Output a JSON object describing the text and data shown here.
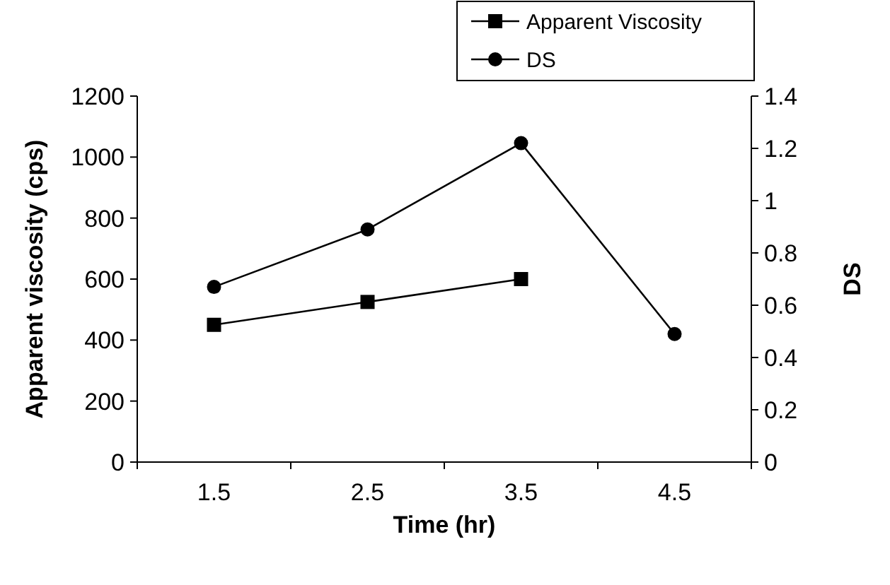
{
  "chart_data": {
    "type": "line",
    "xlabel": "Time (hr)",
    "ylabel": "Apparent viscosity (cps)",
    "y2label": "DS",
    "categories": [
      "1.5",
      "2.5",
      "3.5",
      "4.5"
    ],
    "series": [
      {
        "name": "Apparent Viscosity",
        "color": "#000000",
        "marker": "square",
        "values": [
          450,
          525,
          600,
          null
        ]
      },
      {
        "name": "DS",
        "color": "#000000",
        "marker": "circle",
        "axis": "y2",
        "values": [
          0.67,
          0.89,
          1.22,
          0.49
        ]
      }
    ],
    "ylim": [
      0,
      1200
    ],
    "yticks": [
      0,
      200,
      400,
      600,
      800,
      1000,
      1200
    ],
    "y2lim": [
      0,
      1.4
    ],
    "y2ticks": [
      0,
      0.2,
      0.4,
      0.6,
      0.8,
      1,
      1.2,
      1.4
    ],
    "grid": false,
    "legend": "top right"
  }
}
